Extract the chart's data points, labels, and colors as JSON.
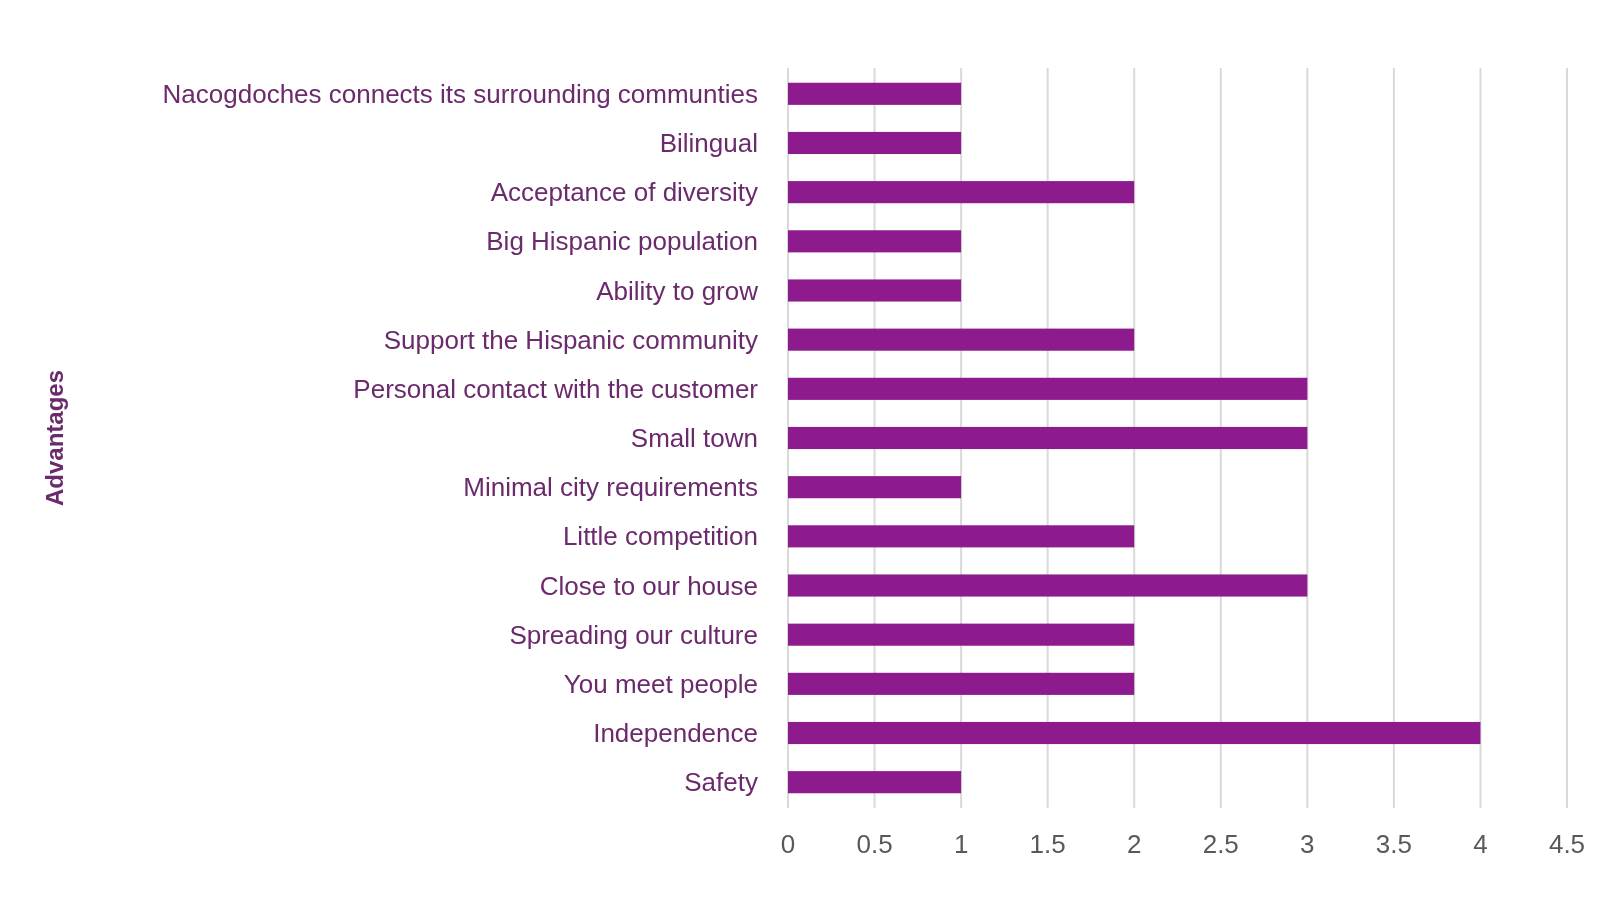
{
  "chart_data": {
    "type": "bar",
    "orientation": "horizontal",
    "ylabel": "Advantages",
    "categories": [
      "Nacogdoches connects its surrounding communties",
      "Bilingual",
      "Acceptance of diversity",
      "Big Hispanic population",
      "Ability to grow",
      "Support the Hispanic community",
      "Personal contact with the customer",
      "Small town",
      "Minimal city requirements",
      "Little competition",
      "Close to our house",
      "Spreading our culture",
      "You meet people",
      "Independence",
      "Safety"
    ],
    "values": [
      1,
      1,
      2,
      1,
      1,
      2,
      3,
      3,
      1,
      2,
      3,
      2,
      2,
      4,
      1
    ],
    "color": "#8e1b8e",
    "xlim": [
      0,
      4.5
    ],
    "xticks": [
      0,
      0.5,
      1,
      1.5,
      2,
      2.5,
      3,
      3.5,
      4,
      4.5
    ],
    "grid": "x"
  }
}
